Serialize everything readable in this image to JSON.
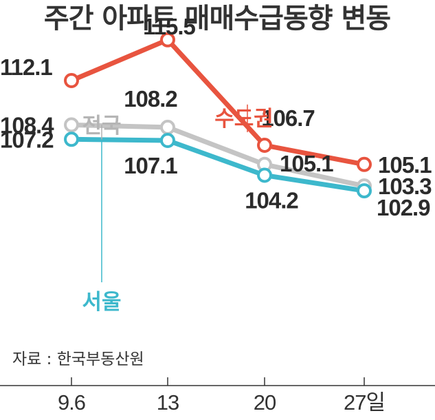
{
  "chart_data": {
    "type": "line",
    "title": "주간 아파트 매매수급동향 변동",
    "categories": [
      "9.6",
      "13",
      "20",
      "27일"
    ],
    "series": [
      {
        "name": "수도권",
        "color": "#e8543f",
        "values": [
          112.1,
          115.5,
          106.7,
          105.1
        ]
      },
      {
        "name": "전국",
        "color": "#c4c4c4",
        "values": [
          108.4,
          108.2,
          105.1,
          103.3
        ]
      },
      {
        "name": "서울",
        "color": "#3db8cc",
        "values": [
          107.2,
          107.1,
          104.2,
          102.9
        ]
      }
    ],
    "value_labels": [
      [
        "112.1",
        "115.5",
        "106.7",
        "105.1"
      ],
      [
        "108.4",
        "108.2",
        "105.1",
        "103.3"
      ],
      [
        "107.2",
        "107.1",
        "104.2",
        "102.9"
      ]
    ],
    "source": "자료 : 한국부동산원",
    "xlabel": "",
    "ylabel": ""
  }
}
